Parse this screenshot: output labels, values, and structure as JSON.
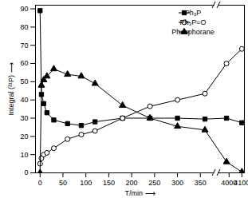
{
  "chart_data": {
    "type": "line",
    "x_label": "T/min ⟶",
    "y_label": "Integral (³¹P) ⟶",
    "xlim": [
      -10,
      4120
    ],
    "x_break": [
      380,
      3920
    ],
    "xticks": [
      0,
      50,
      100,
      150,
      200,
      250,
      300,
      350,
      4000,
      4100
    ],
    "ylim": [
      0,
      92
    ],
    "yticks": [
      0,
      10,
      20,
      30,
      40,
      50,
      60,
      70,
      80,
      90
    ],
    "grid": false,
    "legend": "top-right",
    "x": [
      0,
      3,
      8,
      15,
      30,
      60,
      90,
      120,
      180,
      240,
      300,
      360,
      3980,
      4100
    ],
    "series": [
      {
        "name": "Ph₃P",
        "color": "#000000",
        "marker": "square",
        "line_style": "solid",
        "values": [
          89,
          43,
          38,
          33,
          29,
          27,
          26,
          28,
          30,
          30,
          30,
          29.5,
          30,
          27.5
        ]
      },
      {
        "name": "Ph₃P=O",
        "color": "#000000",
        "marker": "circle-open",
        "line_style": "solid",
        "values": [
          5,
          8,
          10,
          11,
          13.5,
          18.5,
          21,
          23,
          30,
          36.5,
          40,
          43.5,
          60,
          68
        ]
      },
      {
        "name": "Phosphorane",
        "color": "#000000",
        "marker": "triangle",
        "line_style": "solid",
        "values": [
          0,
          48,
          51,
          53,
          57,
          54,
          53,
          49,
          37,
          30,
          25.5,
          23.5,
          6,
          0.5
        ]
      }
    ]
  }
}
